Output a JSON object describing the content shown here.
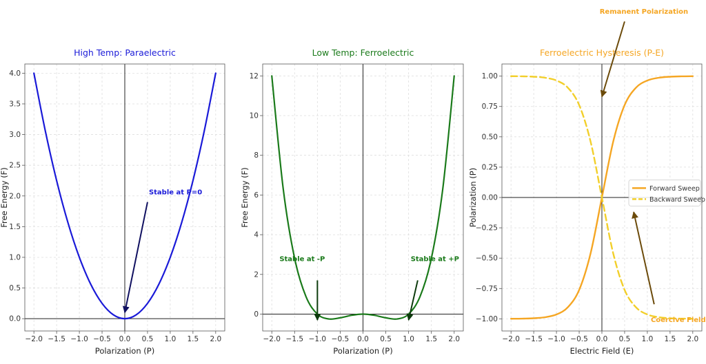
{
  "chart_data": [
    {
      "type": "line",
      "title": "High Temp: Paraelectric",
      "title_color": "#1a1ad8",
      "xlabel": "Polarization (P)",
      "ylabel": "Free Energy (F)",
      "xlim": [
        -2.2,
        2.2
      ],
      "ylim": [
        -0.2,
        4.15
      ],
      "xticks": [
        -2.0,
        -1.5,
        -1.0,
        -0.5,
        0.0,
        0.5,
        1.0,
        1.5,
        2.0
      ],
      "xtick_labels": [
        "−2.0",
        "−1.5",
        "−1.0",
        "−0.5",
        "0.0",
        "0.5",
        "1.0",
        "1.5",
        "2.0"
      ],
      "yticks": [
        0.0,
        0.5,
        1.0,
        1.5,
        2.0,
        2.5,
        3.0,
        3.5,
        4.0
      ],
      "ytick_labels": [
        "0.0",
        "0.5",
        "1.0",
        "1.5",
        "2.0",
        "2.5",
        "3.0",
        "3.5",
        "4.0"
      ],
      "grid": true,
      "series": [
        {
          "color": "#1a1ad8",
          "x": [
            -2.0,
            -1.75,
            -1.5,
            -1.25,
            -1.0,
            -0.75,
            -0.5,
            -0.25,
            0.0,
            0.25,
            0.5,
            0.75,
            1.0,
            1.25,
            1.5,
            1.75,
            2.0
          ],
          "y": [
            4.0,
            3.0625,
            2.25,
            1.5625,
            1.0,
            0.5625,
            0.25,
            0.0625,
            0.0,
            0.0625,
            0.25,
            0.5625,
            1.0,
            1.5625,
            2.25,
            3.0625,
            4.0
          ]
        }
      ],
      "annotations": [
        {
          "text": "Stable at P=0",
          "color": "#1a1ad8",
          "arrow_color": "#101060",
          "xy": [
            0.0,
            0.1
          ],
          "xytext": [
            0.5,
            1.9
          ]
        }
      ]
    },
    {
      "type": "line",
      "title": "Low Temp: Ferroelectric",
      "title_color": "#1a7a1a",
      "xlabel": "Polarization (P)",
      "ylabel": "Free Energy (F)",
      "xlim": [
        -2.2,
        2.2
      ],
      "ylim": [
        -0.85,
        12.6
      ],
      "xticks": [
        -2.0,
        -1.5,
        -1.0,
        -0.5,
        0.0,
        0.5,
        1.0,
        1.5,
        2.0
      ],
      "xtick_labels": [
        "−2.0",
        "−1.5",
        "−1.0",
        "−0.5",
        "0.0",
        "0.5",
        "1.0",
        "1.5",
        "2.0"
      ],
      "yticks": [
        0,
        2,
        4,
        6,
        8,
        10,
        12
      ],
      "ytick_labels": [
        "0",
        "2",
        "4",
        "6",
        "8",
        "10",
        "12"
      ],
      "grid": true,
      "series": [
        {
          "color": "#1a7a1a",
          "x": [
            -2.0,
            -1.75,
            -1.5,
            -1.25,
            -1.0,
            -0.75,
            -0.5,
            -0.25,
            0.0,
            0.25,
            0.5,
            0.75,
            1.0,
            1.25,
            1.5,
            1.75,
            2.0
          ],
          "y": [
            12.0,
            6.316,
            2.8125,
            0.879,
            0.0,
            -0.246,
            -0.1875,
            -0.059,
            0.0,
            -0.059,
            -0.1875,
            -0.246,
            0.0,
            0.879,
            2.8125,
            6.316,
            12.0
          ]
        }
      ],
      "annotations": [
        {
          "text": "Stable at -P",
          "color": "#1a7a1a",
          "arrow_color": "#0c3a0c",
          "xy": [
            -1.0,
            -0.3
          ],
          "xytext": [
            -1.0,
            1.7
          ]
        },
        {
          "text": "Stable at +P",
          "color": "#1a7a1a",
          "arrow_color": "#0c3a0c",
          "xy": [
            1.0,
            -0.3
          ],
          "xytext": [
            1.2,
            1.7
          ]
        }
      ]
    },
    {
      "type": "line",
      "title": "Ferroelectric Hysteresis (P-E)",
      "title_color": "#f5a623",
      "xlabel": "Electric Field (E)",
      "ylabel": "Polarization (P)",
      "xlim": [
        -2.2,
        2.2
      ],
      "ylim": [
        -1.1,
        1.1
      ],
      "xticks": [
        -2.0,
        -1.5,
        -1.0,
        -0.5,
        0.0,
        0.5,
        1.0,
        1.5,
        2.0
      ],
      "xtick_labels": [
        "−2.0",
        "−1.5",
        "−1.0",
        "−0.5",
        "0.0",
        "0.5",
        "1.0",
        "1.5",
        "2.0"
      ],
      "yticks": [
        -1.0,
        -0.75,
        -0.5,
        -0.25,
        0.0,
        0.25,
        0.5,
        0.75,
        1.0
      ],
      "ytick_labels": [
        "−1.00",
        "−0.75",
        "−0.50",
        "−0.25",
        "0.00",
        "0.25",
        "0.50",
        "0.75",
        "1.00"
      ],
      "grid": true,
      "legend": "center-right",
      "series": [
        {
          "name": "Forward Sweep",
          "color": "#f5a623",
          "dash": false,
          "x": [
            -2.0,
            -1.75,
            -1.5,
            -1.25,
            -1.0,
            -0.75,
            -0.5,
            -0.25,
            0.0,
            0.25,
            0.5,
            0.75,
            1.0,
            1.25,
            1.5,
            1.75,
            2.0
          ],
          "y": [
            -0.9993,
            -0.9982,
            -0.9951,
            -0.9866,
            -0.964,
            -0.905,
            -0.7616,
            -0.4621,
            0.0,
            0.4621,
            0.7616,
            0.905,
            0.964,
            0.9866,
            0.9951,
            0.9982,
            0.9993
          ]
        },
        {
          "name": "Backward Sweep",
          "color": "#f2cf2a",
          "dash": true,
          "x": [
            -2.0,
            -1.75,
            -1.5,
            -1.25,
            -1.0,
            -0.75,
            -0.5,
            -0.25,
            0.0,
            0.25,
            0.5,
            0.75,
            1.0,
            1.25,
            1.5,
            1.75,
            2.0
          ],
          "y": [
            0.9993,
            0.9982,
            0.9951,
            0.9866,
            0.964,
            0.905,
            0.7616,
            0.4621,
            0.0,
            -0.4621,
            -0.7616,
            -0.905,
            -0.964,
            -0.9866,
            -0.9951,
            -0.9982,
            -0.9993
          ]
        }
      ],
      "annotations": [
        {
          "text": "Remanent Polarization",
          "color": "#f5a623",
          "arrow_color": "#6b4a0a",
          "xy": [
            0.0,
            0.83
          ],
          "xytext": [
            0.5,
            1.45
          ]
        },
        {
          "text": "Coercive Field",
          "color": "#f5a623",
          "arrow_color": "#6b4a0a",
          "xy": [
            0.7,
            -0.12
          ],
          "xytext": [
            1.15,
            -0.88
          ]
        }
      ]
    }
  ]
}
